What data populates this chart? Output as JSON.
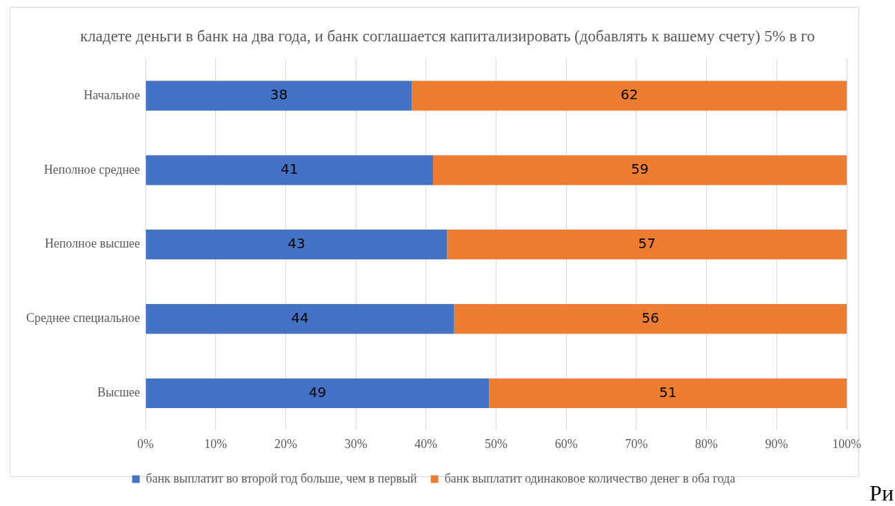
{
  "chart_data": {
    "type": "bar",
    "orientation": "horizontal",
    "stacked": true,
    "title": "кладете деньги в банк на два года, и банк соглашается капитализировать (добавлять к вашему счету) 5% в го",
    "categories": [
      "Начальное",
      "Неполное среднее",
      "Неполное высшее",
      "Среднее специальное",
      "Высшее"
    ],
    "series": [
      {
        "name": "банк выплатит во второй год больше, чем в первый",
        "color": "#4472c4",
        "values": [
          38,
          41,
          43,
          44,
          49
        ]
      },
      {
        "name": "банк выплатит одинаковое количество денег в оба года",
        "color": "#ed7d31",
        "values": [
          62,
          59,
          57,
          56,
          51
        ]
      }
    ],
    "xlim": [
      0,
      100
    ],
    "xticks": [
      {
        "value": 0,
        "label": "0%"
      },
      {
        "value": 10,
        "label": "10%"
      },
      {
        "value": 20,
        "label": "20%"
      },
      {
        "value": 30,
        "label": "30%"
      },
      {
        "value": 40,
        "label": "40%"
      },
      {
        "value": 50,
        "label": "50%"
      },
      {
        "value": 60,
        "label": "60%"
      },
      {
        "value": 70,
        "label": "70%"
      },
      {
        "value": 80,
        "label": "80%"
      },
      {
        "value": 90,
        "label": "90%"
      },
      {
        "value": 100,
        "label": "100%"
      }
    ],
    "grid": "x",
    "legend": "bottom",
    "data_labels": true,
    "annotations": [
      "Ри"
    ]
  }
}
